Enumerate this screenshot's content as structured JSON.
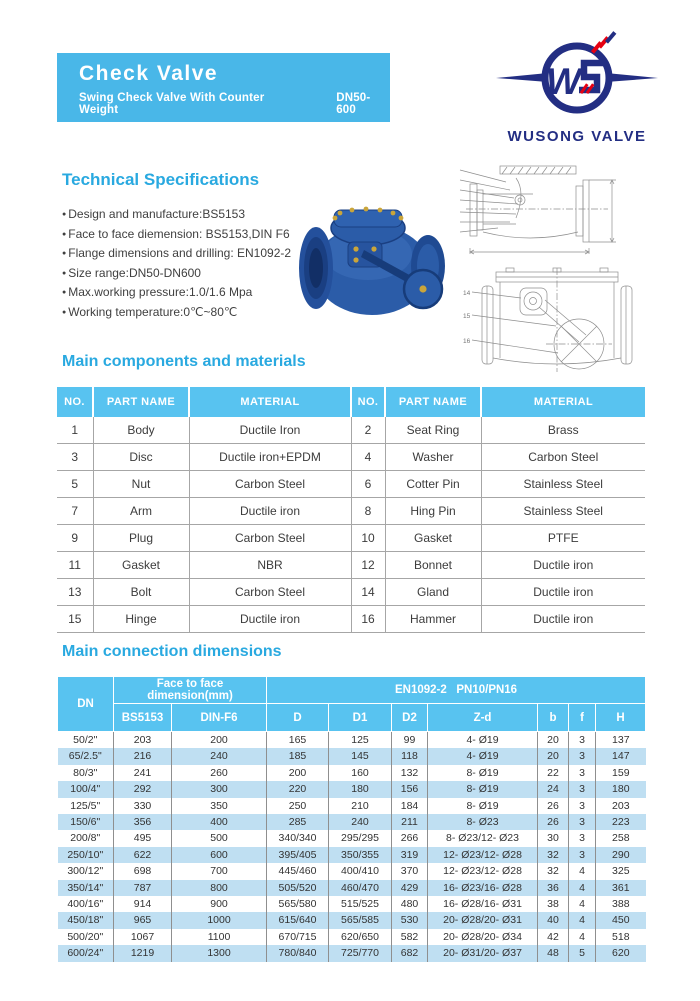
{
  "header": {
    "title": "Check Valve",
    "subtitle": "Swing Check Valve With Counter Weight",
    "size_range": "DN50-600"
  },
  "logo": {
    "name": "WUSONG VALVE"
  },
  "colors": {
    "banner": "#49b7e8",
    "heading": "#29a9e0",
    "table_header": "#58c3f0",
    "row_stripe": "#bfdff2",
    "logo_navy": "#232e83",
    "logo_red": "#e60012",
    "valve_blue": "#2b5ca8"
  },
  "tech_specs": {
    "heading": "Technical Specifications",
    "items": [
      "Design and manufacture:BS5153",
      "Face to face diemension: BS5153,DIN F6",
      "Flange dimensions and drilling: EN1092-2",
      "Size range:DN50-DN600",
      "Max.working pressure:1.0/1.6 Mpa",
      "Working temperature:0℃~80℃"
    ]
  },
  "drawing": {
    "labels": [
      "14",
      "15",
      "16"
    ]
  },
  "components": {
    "heading": "Main components and materials",
    "columns": [
      "NO.",
      "PART NAME",
      "MATERIAL",
      "NO.",
      "PART NAME",
      "MATERIAL"
    ],
    "rows": [
      [
        "1",
        "Body",
        "Ductile Iron",
        "2",
        "Seat Ring",
        "Brass"
      ],
      [
        "3",
        "Disc",
        "Ductile iron+EPDM",
        "4",
        "Washer",
        "Carbon Steel"
      ],
      [
        "5",
        "Nut",
        "Carbon Steel",
        "6",
        "Cotter Pin",
        "Stainless Steel"
      ],
      [
        "7",
        "Arm",
        "Ductile iron",
        "8",
        "Hing Pin",
        "Stainless Steel"
      ],
      [
        "9",
        "Plug",
        "Carbon Steel",
        "10",
        "Gasket",
        "PTFE"
      ],
      [
        "11",
        "Gasket",
        "NBR",
        "12",
        "Bonnet",
        "Ductile iron"
      ],
      [
        "13",
        "Bolt",
        "Carbon Steel",
        "14",
        "Gland",
        "Ductile iron"
      ],
      [
        "15",
        "Hinge",
        "Ductile iron",
        "16",
        "Hammer",
        "Ductile iron"
      ]
    ]
  },
  "dimensions": {
    "heading": "Main connection dimensions",
    "group_headers": {
      "dn": "DN",
      "face_to_face": "Face to face dimension(mm)",
      "en": "EN1092-2   PN10/PN16"
    },
    "sub_headers": [
      "BS5153",
      "DIN-F6",
      "D",
      "D1",
      "D2",
      "Z-d",
      "b",
      "f",
      "H"
    ],
    "rows": [
      [
        "50/2\"",
        "203",
        "200",
        "165",
        "125",
        "99",
        "4- Ø19",
        "20",
        "3",
        "137"
      ],
      [
        "65/2.5\"",
        "216",
        "240",
        "185",
        "145",
        "118",
        "4- Ø19",
        "20",
        "3",
        "147"
      ],
      [
        "80/3\"",
        "241",
        "260",
        "200",
        "160",
        "132",
        "8- Ø19",
        "22",
        "3",
        "159"
      ],
      [
        "100/4\"",
        "292",
        "300",
        "220",
        "180",
        "156",
        "8- Ø19",
        "24",
        "3",
        "180"
      ],
      [
        "125/5\"",
        "330",
        "350",
        "250",
        "210",
        "184",
        "8- Ø19",
        "26",
        "3",
        "203"
      ],
      [
        "150/6\"",
        "356",
        "400",
        "285",
        "240",
        "211",
        "8- Ø23",
        "26",
        "3",
        "223"
      ],
      [
        "200/8\"",
        "495",
        "500",
        "340/340",
        "295/295",
        "266",
        "8- Ø23/12- Ø23",
        "30",
        "3",
        "258"
      ],
      [
        "250/10\"",
        "622",
        "600",
        "395/405",
        "350/355",
        "319",
        "12- Ø23/12- Ø28",
        "32",
        "3",
        "290"
      ],
      [
        "300/12\"",
        "698",
        "700",
        "445/460",
        "400/410",
        "370",
        "12- Ø23/12- Ø28",
        "32",
        "4",
        "325"
      ],
      [
        "350/14\"",
        "787",
        "800",
        "505/520",
        "460/470",
        "429",
        "16- Ø23/16- Ø28",
        "36",
        "4",
        "361"
      ],
      [
        "400/16\"",
        "914",
        "900",
        "565/580",
        "515/525",
        "480",
        "16- Ø28/16- Ø31",
        "38",
        "4",
        "388"
      ],
      [
        "450/18\"",
        "965",
        "1000",
        "615/640",
        "565/585",
        "530",
        "20- Ø28/20- Ø31",
        "40",
        "4",
        "450"
      ],
      [
        "500/20\"",
        "1067",
        "1100",
        "670/715",
        "620/650",
        "582",
        "20- Ø28/20- Ø34",
        "42",
        "4",
        "518"
      ],
      [
        "600/24\"",
        "1219",
        "1300",
        "780/840",
        "725/770",
        "682",
        "20- Ø31/20- Ø37",
        "48",
        "5",
        "620"
      ]
    ]
  }
}
